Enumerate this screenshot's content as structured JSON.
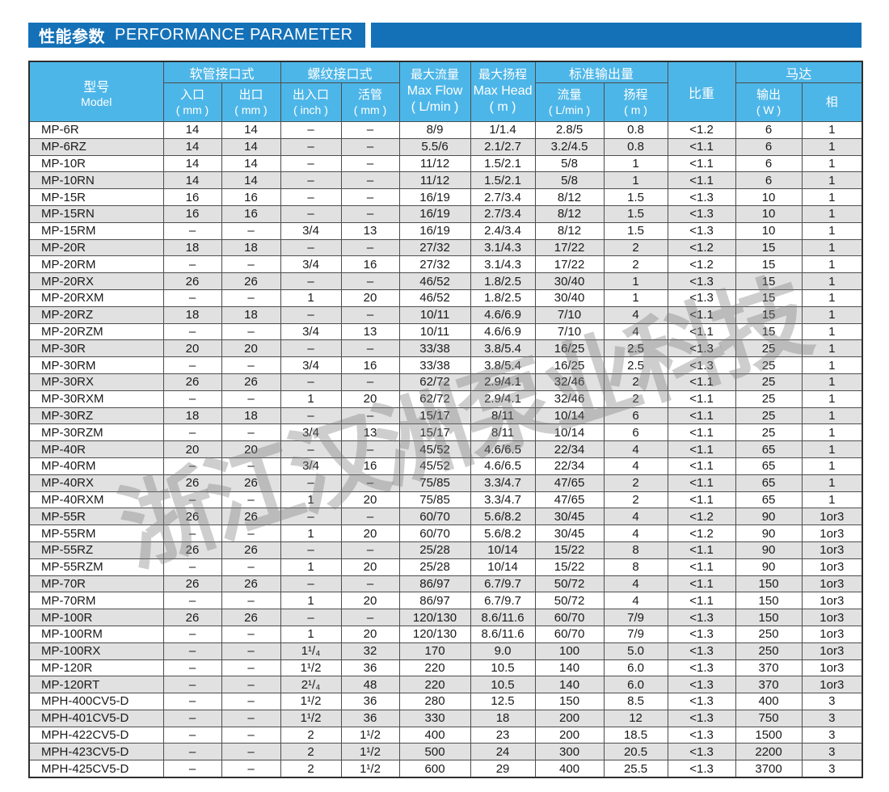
{
  "title": {
    "zh": "性能参数",
    "en": "PERFORMANCE PARAMETER"
  },
  "watermark_text": "浙江汉洲泵业科技",
  "colors": {
    "title_bar_blue": "#1471b8",
    "header_blue": "#4db6e8",
    "row_stripe_gray": "#e1e1e1",
    "border_gray": "#4d4d4d"
  },
  "table": {
    "header": {
      "model": {
        "line1": "型号",
        "line2": "Model"
      },
      "hose_group": "软管接口式",
      "hose_inlet": {
        "line1": "入口",
        "line2": "( mm )"
      },
      "hose_outlet": {
        "line1": "出口",
        "line2": "( mm )"
      },
      "thread_group": "螺纹接口式",
      "thread_io": {
        "line1": "出入口",
        "line2": "( inch )"
      },
      "thread_union": {
        "line1": "活管",
        "line2": "( mm )"
      },
      "max_flow": {
        "line1": "最大流量",
        "line2": "Max Flow",
        "line3": "( L/min )"
      },
      "max_head": {
        "line1": "最大扬程",
        "line2": "Max Head",
        "line3": "( m )"
      },
      "std_output_group": "标准输出量",
      "std_flow": {
        "line1": "流量",
        "line2": "( L/min )"
      },
      "std_head": {
        "line1": "扬程",
        "line2": "( m )"
      },
      "specific_gravity": "比重",
      "motor_group": "马达",
      "motor_output": {
        "line1": "输出",
        "line2": "( W )"
      },
      "motor_phase": "相"
    },
    "rows": [
      [
        "MP-6R",
        "14",
        "14",
        "–",
        "–",
        "8/9",
        "1/1.4",
        "2.8/5",
        "0.8",
        "<1.2",
        "6",
        "1"
      ],
      [
        "MP-6RZ",
        "14",
        "14",
        "–",
        "–",
        "5.5/6",
        "2.1/2.7",
        "3.2/4.5",
        "0.8",
        "<1.1",
        "6",
        "1"
      ],
      [
        "MP-10R",
        "14",
        "14",
        "–",
        "–",
        "11/12",
        "1.5/2.1",
        "5/8",
        "1",
        "<1.1",
        "6",
        "1"
      ],
      [
        "MP-10RN",
        "14",
        "14",
        "–",
        "–",
        "11/12",
        "1.5/2.1",
        "5/8",
        "1",
        "<1.1",
        "6",
        "1"
      ],
      [
        "MP-15R",
        "16",
        "16",
        "–",
        "–",
        "16/19",
        "2.7/3.4",
        "8/12",
        "1.5",
        "<1.3",
        "10",
        "1"
      ],
      [
        "MP-15RN",
        "16",
        "16",
        "–",
        "–",
        "16/19",
        "2.7/3.4",
        "8/12",
        "1.5",
        "<1.3",
        "10",
        "1"
      ],
      [
        "MP-15RM",
        "–",
        "–",
        "3/4",
        "13",
        "16/19",
        "2.4/3.4",
        "8/12",
        "1.5",
        "<1.3",
        "10",
        "1"
      ],
      [
        "MP-20R",
        "18",
        "18",
        "–",
        "–",
        "27/32",
        "3.1/4.3",
        "17/22",
        "2",
        "<1.2",
        "15",
        "1"
      ],
      [
        "MP-20RM",
        "–",
        "–",
        "3/4",
        "16",
        "27/32",
        "3.1/4.3",
        "17/22",
        "2",
        "<1.2",
        "15",
        "1"
      ],
      [
        "MP-20RX",
        "26",
        "26",
        "–",
        "–",
        "46/52",
        "1.8/2.5",
        "30/40",
        "1",
        "<1.3",
        "15",
        "1"
      ],
      [
        "MP-20RXM",
        "–",
        "–",
        "1",
        "20",
        "46/52",
        "1.8/2.5",
        "30/40",
        "1",
        "<1.3",
        "15",
        "1"
      ],
      [
        "MP-20RZ",
        "18",
        "18",
        "–",
        "–",
        "10/11",
        "4.6/6.9",
        "7/10",
        "4",
        "<1.1",
        "15",
        "1"
      ],
      [
        "MP-20RZM",
        "–",
        "–",
        "3/4",
        "13",
        "10/11",
        "4.6/6.9",
        "7/10",
        "4",
        "<1.1",
        "15",
        "1"
      ],
      [
        "MP-30R",
        "20",
        "20",
        "–",
        "–",
        "33/38",
        "3.8/5.4",
        "16/25",
        "2.5",
        "<1.3",
        "25",
        "1"
      ],
      [
        "MP-30RM",
        "–",
        "–",
        "3/4",
        "16",
        "33/38",
        "3.8/5.4",
        "16/25",
        "2.5",
        "<1.3",
        "25",
        "1"
      ],
      [
        "MP-30RX",
        "26",
        "26",
        "–",
        "–",
        "62/72",
        "2.9/4.1",
        "32/46",
        "2",
        "<1.1",
        "25",
        "1"
      ],
      [
        "MP-30RXM",
        "–",
        "–",
        "1",
        "20",
        "62/72",
        "2.9/4.1",
        "32/46",
        "2",
        "<1.1",
        "25",
        "1"
      ],
      [
        "MP-30RZ",
        "18",
        "18",
        "–",
        "–",
        "15/17",
        "8/11",
        "10/14",
        "6",
        "<1.1",
        "25",
        "1"
      ],
      [
        "MP-30RZM",
        "–",
        "–",
        "3/4",
        "13",
        "15/17",
        "8/11",
        "10/14",
        "6",
        "<1.1",
        "25",
        "1"
      ],
      [
        "MP-40R",
        "20",
        "20",
        "–",
        "–",
        "45/52",
        "4.6/6.5",
        "22/34",
        "4",
        "<1.1",
        "65",
        "1"
      ],
      [
        "MP-40RM",
        "–",
        "–",
        "3/4",
        "16",
        "45/52",
        "4.6/6.5",
        "22/34",
        "4",
        "<1.1",
        "65",
        "1"
      ],
      [
        "MP-40RX",
        "26",
        "26",
        "–",
        "–",
        "75/85",
        "3.3/4.7",
        "47/65",
        "2",
        "<1.1",
        "65",
        "1"
      ],
      [
        "MP-40RXM",
        "–",
        "–",
        "1",
        "20",
        "75/85",
        "3.3/4.7",
        "47/65",
        "2",
        "<1.1",
        "65",
        "1"
      ],
      [
        "MP-55R",
        "26",
        "26",
        "–",
        "–",
        "60/70",
        "5.6/8.2",
        "30/45",
        "4",
        "<1.2",
        "90",
        "1or3"
      ],
      [
        "MP-55RM",
        "–",
        "–",
        "1",
        "20",
        "60/70",
        "5.6/8.2",
        "30/45",
        "4",
        "<1.2",
        "90",
        "1or3"
      ],
      [
        "MP-55RZ",
        "26",
        "26",
        "–",
        "–",
        "25/28",
        "10/14",
        "15/22",
        "8",
        "<1.1",
        "90",
        "1or3"
      ],
      [
        "MP-55RZM",
        "–",
        "–",
        "1",
        "20",
        "25/28",
        "10/14",
        "15/22",
        "8",
        "<1.1",
        "90",
        "1or3"
      ],
      [
        "MP-70R",
        "26",
        "26",
        "–",
        "–",
        "86/97",
        "6.7/9.7",
        "50/72",
        "4",
        "<1.1",
        "150",
        "1or3"
      ],
      [
        "MP-70RM",
        "–",
        "–",
        "1",
        "20",
        "86/97",
        "6.7/9.7",
        "50/72",
        "4",
        "<1.1",
        "150",
        "1or3"
      ],
      [
        "MP-100R",
        "26",
        "26",
        "–",
        "–",
        "120/130",
        "8.6/11.6",
        "60/70",
        "7/9",
        "<1.3",
        "150",
        "1or3"
      ],
      [
        "MP-100RM",
        "–",
        "–",
        "1",
        "20",
        "120/130",
        "8.6/11.6",
        "60/70",
        "7/9",
        "<1.3",
        "250",
        "1or3"
      ],
      [
        "MP-100RX",
        "–",
        "–",
        "1¹/₄",
        "32",
        "170",
        "9.0",
        "100",
        "5.0",
        "<1.3",
        "250",
        "1or3"
      ],
      [
        "MP-120R",
        "–",
        "–",
        "1¹/2",
        "36",
        "220",
        "10.5",
        "140",
        "6.0",
        "<1.3",
        "370",
        "1or3"
      ],
      [
        "MP-120RT",
        "–",
        "–",
        "2¹/₄",
        "48",
        "220",
        "10.5",
        "140",
        "6.0",
        "<1.3",
        "370",
        "1or3"
      ],
      [
        "MPH-400CV5-D",
        "–",
        "–",
        "1¹/2",
        "36",
        "280",
        "12.5",
        "150",
        "8.5",
        "<1.3",
        "400",
        "3"
      ],
      [
        "MPH-401CV5-D",
        "–",
        "–",
        "1¹/2",
        "36",
        "330",
        "18",
        "200",
        "12",
        "<1.3",
        "750",
        "3"
      ],
      [
        "MPH-422CV5-D",
        "–",
        "–",
        "2",
        "1¹/2",
        "400",
        "23",
        "200",
        "18.5",
        "<1.3",
        "1500",
        "3"
      ],
      [
        "MPH-423CV5-D",
        "–",
        "–",
        "2",
        "1¹/2",
        "500",
        "24",
        "300",
        "20.5",
        "<1.3",
        "2200",
        "3"
      ],
      [
        "MPH-425CV5-D",
        "–",
        "–",
        "2",
        "1¹/2",
        "600",
        "29",
        "400",
        "25.5",
        "<1.3",
        "3700",
        "3"
      ]
    ]
  }
}
